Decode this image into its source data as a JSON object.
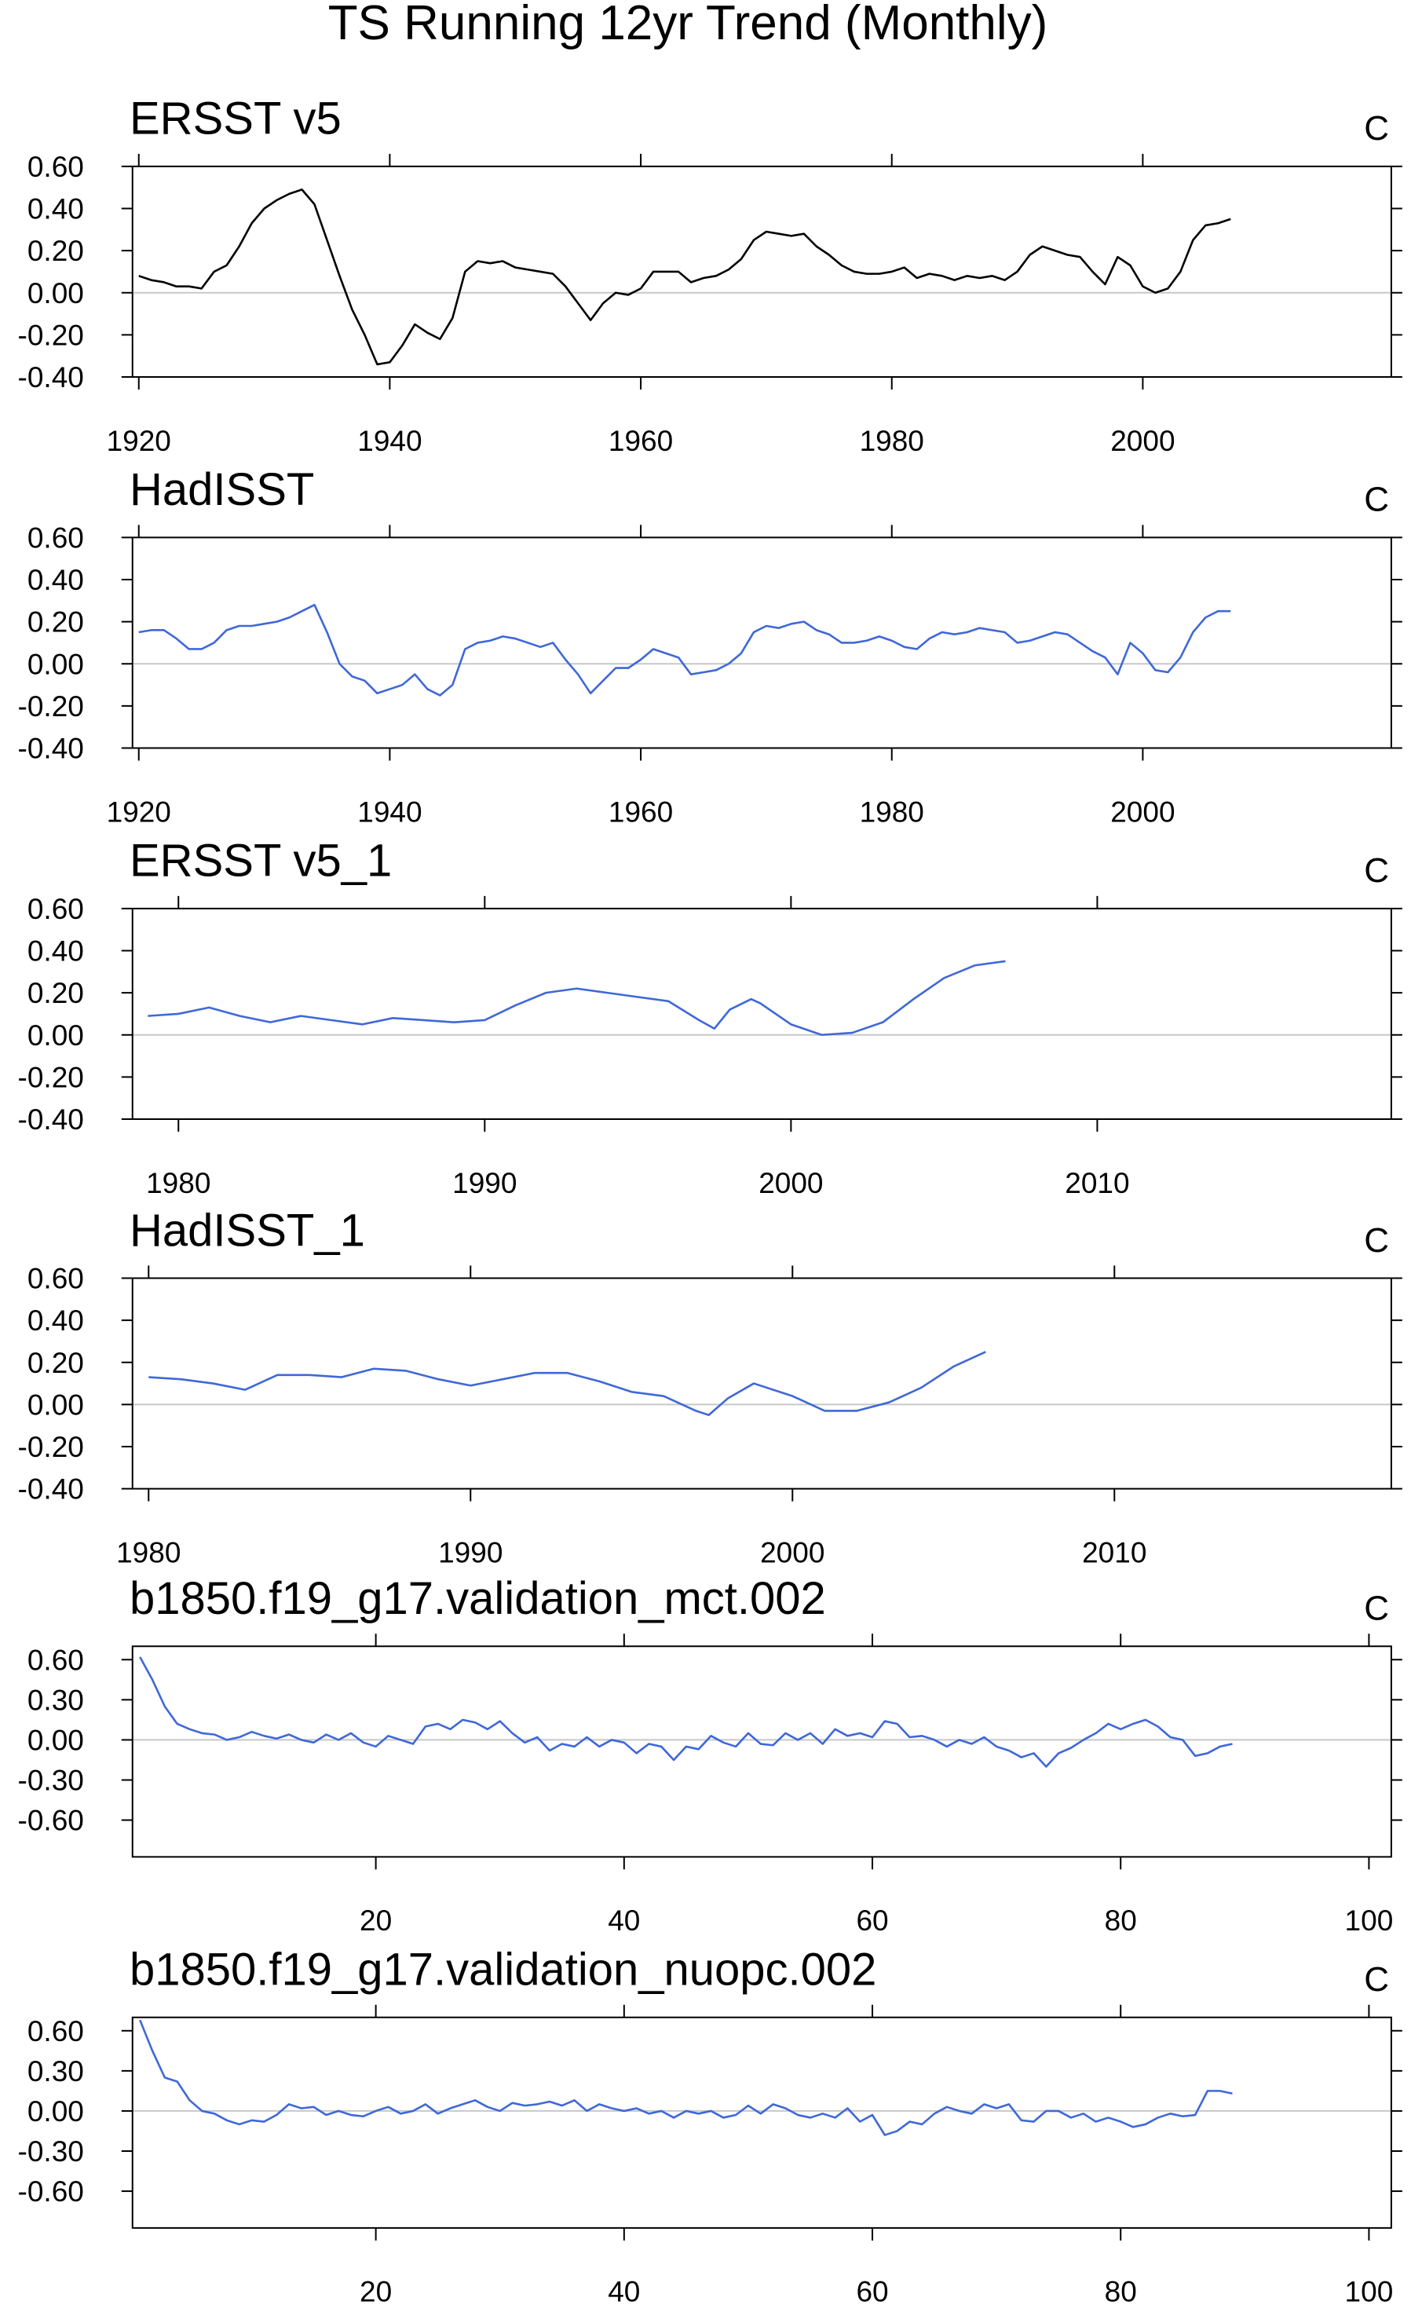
{
  "title": "TS Running 12yr Trend (Monthly)",
  "chart_data": [
    {
      "type": "line",
      "title": "ERSST v5",
      "units": "C",
      "color": "#000000",
      "zero_line": true,
      "xlim": [
        1919.5,
        2019.8
      ],
      "ylim": [
        -0.4,
        0.6
      ],
      "xticks": [
        1920,
        1940,
        1960,
        1980,
        2000
      ],
      "yticks": [
        {
          "value": 0.6,
          "label": "0.60"
        },
        {
          "value": 0.4,
          "label": "0.40"
        },
        {
          "value": 0.2,
          "label": "0.20"
        },
        {
          "value": 0,
          "label": "0.00"
        },
        {
          "value": -0.2,
          "label": "-0.20"
        },
        {
          "value": -0.4,
          "label": "-0.40"
        }
      ],
      "x": [
        1920,
        1921,
        1922,
        1923,
        1924,
        1925,
        1926,
        1927,
        1928,
        1929,
        1930,
        1931,
        1932,
        1933,
        1934,
        1935,
        1936,
        1937,
        1938,
        1939,
        1940,
        1941,
        1942,
        1943,
        1944,
        1945,
        1946,
        1947,
        1948,
        1949,
        1950,
        1951,
        1952,
        1953,
        1954,
        1955,
        1956,
        1957,
        1958,
        1959,
        1960,
        1961,
        1962,
        1963,
        1964,
        1965,
        1966,
        1967,
        1968,
        1969,
        1970,
        1971,
        1972,
        1973,
        1974,
        1975,
        1976,
        1977,
        1978,
        1979,
        1980,
        1981,
        1982,
        1983,
        1984,
        1985,
        1986,
        1987,
        1988,
        1989,
        1990,
        1991,
        1992,
        1993,
        1994,
        1995,
        1996,
        1997,
        1998,
        1999,
        2000,
        2001,
        2002,
        2003,
        2004,
        2005,
        2006,
        2007
      ],
      "values": [
        0.08,
        0.06,
        0.05,
        0.03,
        0.03,
        0.02,
        0.1,
        0.13,
        0.22,
        0.33,
        0.4,
        0.44,
        0.47,
        0.49,
        0.42,
        0.25,
        0.08,
        -0.08,
        -0.2,
        -0.34,
        -0.33,
        -0.25,
        -0.15,
        -0.19,
        -0.22,
        -0.12,
        0.1,
        0.15,
        0.14,
        0.15,
        0.12,
        0.11,
        0.1,
        0.09,
        0.03,
        -0.05,
        -0.13,
        -0.05,
        0,
        -0.01,
        0.02,
        0.1,
        0.1,
        0.1,
        0.05,
        0.07,
        0.08,
        0.11,
        0.16,
        0.25,
        0.29,
        0.28,
        0.27,
        0.28,
        0.22,
        0.18,
        0.13,
        0.1,
        0.09,
        0.09,
        0.1,
        0.12,
        0.07,
        0.09,
        0.08,
        0.06,
        0.08,
        0.07,
        0.08,
        0.06,
        0.1,
        0.18,
        0.22,
        0.2,
        0.18,
        0.17,
        0.1,
        0.04,
        0.17,
        0.13,
        0.03,
        0,
        0.02,
        0.1,
        0.25,
        0.32,
        0.33,
        0.35
      ]
    },
    {
      "type": "line",
      "title": "HadISST",
      "units": "C",
      "color": "#3f68d8",
      "zero_line": true,
      "xlim": [
        1919.5,
        2019.8
      ],
      "ylim": [
        -0.4,
        0.6
      ],
      "xticks": [
        1920,
        1940,
        1960,
        1980,
        2000
      ],
      "yticks": [
        {
          "value": 0.6,
          "label": "0.60"
        },
        {
          "value": 0.4,
          "label": "0.40"
        },
        {
          "value": 0.2,
          "label": "0.20"
        },
        {
          "value": 0,
          "label": "0.00"
        },
        {
          "value": -0.2,
          "label": "-0.20"
        },
        {
          "value": -0.4,
          "label": "-0.40"
        }
      ],
      "x": [
        1920,
        1921,
        1922,
        1923,
        1924,
        1925,
        1926,
        1927,
        1928,
        1929,
        1930,
        1931,
        1932,
        1933,
        1934,
        1935,
        1936,
        1937,
        1938,
        1939,
        1940,
        1941,
        1942,
        1943,
        1944,
        1945,
        1946,
        1947,
        1948,
        1949,
        1950,
        1951,
        1952,
        1953,
        1954,
        1955,
        1956,
        1957,
        1958,
        1959,
        1960,
        1961,
        1962,
        1963,
        1964,
        1965,
        1966,
        1967,
        1968,
        1969,
        1970,
        1971,
        1972,
        1973,
        1974,
        1975,
        1976,
        1977,
        1978,
        1979,
        1980,
        1981,
        1982,
        1983,
        1984,
        1985,
        1986,
        1987,
        1988,
        1989,
        1990,
        1991,
        1992,
        1993,
        1994,
        1995,
        1996,
        1997,
        1998,
        1999,
        2000,
        2001,
        2002,
        2003,
        2004,
        2005,
        2006,
        2007
      ],
      "values": [
        0.15,
        0.16,
        0.16,
        0.12,
        0.07,
        0.07,
        0.1,
        0.16,
        0.18,
        0.18,
        0.19,
        0.2,
        0.22,
        0.25,
        0.28,
        0.15,
        0,
        -0.06,
        -0.08,
        -0.14,
        -0.12,
        -0.1,
        -0.05,
        -0.12,
        -0.15,
        -0.1,
        0.07,
        0.1,
        0.11,
        0.13,
        0.12,
        0.1,
        0.08,
        0.1,
        0.02,
        -0.05,
        -0.14,
        -0.08,
        -0.02,
        -0.02,
        0.02,
        0.07,
        0.05,
        0.03,
        -0.05,
        -0.04,
        -0.03,
        0,
        0.05,
        0.15,
        0.18,
        0.17,
        0.19,
        0.2,
        0.16,
        0.14,
        0.1,
        0.1,
        0.11,
        0.13,
        0.11,
        0.08,
        0.07,
        0.12,
        0.15,
        0.14,
        0.15,
        0.17,
        0.16,
        0.15,
        0.1,
        0.11,
        0.13,
        0.15,
        0.14,
        0.1,
        0.06,
        0.03,
        -0.05,
        0.1,
        0.05,
        -0.03,
        -0.04,
        0.03,
        0.15,
        0.22,
        0.25,
        0.25
      ]
    },
    {
      "type": "line",
      "title": "ERSST v5_1",
      "units": "C",
      "color": "#3f68d8",
      "zero_line": true,
      "xlim": [
        1978.5,
        2019.6
      ],
      "ylim": [
        -0.4,
        0.6
      ],
      "xticks": [
        1980,
        1990,
        2000,
        2010
      ],
      "yticks": [
        {
          "value": 0.6,
          "label": "0.60"
        },
        {
          "value": 0.4,
          "label": "0.40"
        },
        {
          "value": 0.2,
          "label": "0.20"
        },
        {
          "value": 0,
          "label": "0.00"
        },
        {
          "value": -0.2,
          "label": "-0.20"
        },
        {
          "value": -0.4,
          "label": "-0.40"
        }
      ],
      "x": [
        1979,
        1980,
        1981,
        1982,
        1983,
        1984,
        1985,
        1986,
        1987,
        1988,
        1989,
        1990,
        1991,
        1992,
        1993,
        1994,
        1995,
        1996,
        1997,
        1997.5,
        1998,
        1998.7,
        1999,
        2000,
        2001,
        2002,
        2003,
        2004,
        2005,
        2006,
        2007
      ],
      "values": [
        0.09,
        0.1,
        0.13,
        0.09,
        0.06,
        0.09,
        0.07,
        0.05,
        0.08,
        0.07,
        0.06,
        0.07,
        0.14,
        0.2,
        0.22,
        0.2,
        0.18,
        0.16,
        0.07,
        0.03,
        0.12,
        0.17,
        0.15,
        0.05,
        0,
        0.01,
        0.06,
        0.17,
        0.27,
        0.33,
        0.35
      ]
    },
    {
      "type": "line",
      "title": "HadISST_1",
      "units": "C",
      "color": "#3f68d8",
      "zero_line": true,
      "xlim": [
        1979.5,
        2018.6
      ],
      "ylim": [
        -0.4,
        0.6
      ],
      "xticks": [
        1980,
        1990,
        2000,
        2010
      ],
      "yticks": [
        {
          "value": 0.6,
          "label": "0.60"
        },
        {
          "value": 0.4,
          "label": "0.40"
        },
        {
          "value": 0.2,
          "label": "0.20"
        },
        {
          "value": 0,
          "label": "0.00"
        },
        {
          "value": -0.2,
          "label": "-0.20"
        },
        {
          "value": -0.4,
          "label": "-0.40"
        }
      ],
      "x": [
        1980,
        1981,
        1982,
        1983,
        1984,
        1985,
        1986,
        1987,
        1988,
        1989,
        1990,
        1991,
        1992,
        1993,
        1994,
        1995,
        1996,
        1997,
        1997.4,
        1998,
        1998.8,
        2000,
        2001,
        2002,
        2003,
        2004,
        2005,
        2006
      ],
      "values": [
        0.13,
        0.12,
        0.1,
        0.07,
        0.14,
        0.14,
        0.13,
        0.17,
        0.16,
        0.12,
        0.09,
        0.12,
        0.15,
        0.15,
        0.11,
        0.06,
        0.04,
        -0.03,
        -0.05,
        0.03,
        0.1,
        0.04,
        -0.03,
        -0.03,
        0.01,
        0.08,
        0.18,
        0.25
      ]
    },
    {
      "type": "line",
      "title": "b1850.f19_g17.validation_mct.002",
      "units": "C",
      "color": "#3f68d8",
      "zero_line": true,
      "xlim": [
        0.4,
        101.8
      ],
      "ylim": [
        -0.875,
        0.7
      ],
      "xticks": [
        20,
        40,
        60,
        80,
        100
      ],
      "yticks": [
        {
          "value": 0.6,
          "label": "0.60"
        },
        {
          "value": 0.3,
          "label": "0.30"
        },
        {
          "value": 0,
          "label": "0.00"
        },
        {
          "value": -0.3,
          "label": "-0.30"
        },
        {
          "value": -0.6,
          "label": "-0.60"
        }
      ],
      "x": [
        1,
        2,
        3,
        4,
        5,
        6,
        7,
        8,
        9,
        10,
        11,
        12,
        13,
        14,
        15,
        16,
        17,
        18,
        19,
        20,
        21,
        22,
        23,
        24,
        25,
        26,
        27,
        28,
        29,
        30,
        31,
        32,
        33,
        34,
        35,
        36,
        37,
        38,
        39,
        40,
        41,
        42,
        43,
        44,
        45,
        46,
        47,
        48,
        49,
        50,
        51,
        52,
        53,
        54,
        55,
        56,
        57,
        58,
        59,
        60,
        61,
        62,
        63,
        64,
        65,
        66,
        67,
        68,
        69,
        70,
        71,
        72,
        73,
        74,
        75,
        76,
        77,
        78,
        79,
        80,
        81,
        82,
        83,
        84,
        85,
        86,
        87,
        88,
        89
      ],
      "values": [
        0.62,
        0.45,
        0.25,
        0.12,
        0.08,
        0.05,
        0.04,
        0,
        0.02,
        0.06,
        0.03,
        0.01,
        0.04,
        0,
        -0.02,
        0.04,
        0,
        0.05,
        -0.02,
        -0.05,
        0.03,
        0,
        -0.03,
        0.1,
        0.12,
        0.08,
        0.15,
        0.13,
        0.08,
        0.14,
        0.05,
        -0.02,
        0.02,
        -0.08,
        -0.03,
        -0.05,
        0.02,
        -0.05,
        0,
        -0.02,
        -0.1,
        -0.03,
        -0.05,
        -0.15,
        -0.05,
        -0.07,
        0.03,
        -0.02,
        -0.05,
        0.05,
        -0.03,
        -0.04,
        0.05,
        0,
        0.05,
        -0.03,
        0.08,
        0.03,
        0.05,
        0.02,
        0.14,
        0.12,
        0.02,
        0.03,
        0,
        -0.05,
        0,
        -0.03,
        0.02,
        -0.05,
        -0.08,
        -0.13,
        -0.1,
        -0.2,
        -0.1,
        -0.06,
        0,
        0.05,
        0.12,
        0.08,
        0.12,
        0.15,
        0.1,
        0.02,
        0,
        -0.12,
        -0.1,
        -0.05,
        -0.03
      ]
    },
    {
      "type": "line",
      "title": "b1850.f19_g17.validation_nuopc.002",
      "units": "C",
      "color": "#3f68d8",
      "zero_line": true,
      "xlim": [
        0.4,
        101.8
      ],
      "ylim": [
        -0.875,
        0.7
      ],
      "xticks": [
        20,
        40,
        60,
        80,
        100
      ],
      "yticks": [
        {
          "value": 0.6,
          "label": "0.60"
        },
        {
          "value": 0.3,
          "label": "0.30"
        },
        {
          "value": 0,
          "label": "0.00"
        },
        {
          "value": -0.3,
          "label": "-0.30"
        },
        {
          "value": -0.6,
          "label": "-0.60"
        }
      ],
      "x": [
        1,
        2,
        3,
        4,
        5,
        6,
        7,
        8,
        9,
        10,
        11,
        12,
        13,
        14,
        15,
        16,
        17,
        18,
        19,
        20,
        21,
        22,
        23,
        24,
        25,
        26,
        27,
        28,
        29,
        30,
        31,
        32,
        33,
        34,
        35,
        36,
        37,
        38,
        39,
        40,
        41,
        42,
        43,
        44,
        45,
        46,
        47,
        48,
        49,
        50,
        51,
        52,
        53,
        54,
        55,
        56,
        57,
        58,
        59,
        60,
        61,
        62,
        63,
        64,
        65,
        66,
        67,
        68,
        69,
        70,
        71,
        72,
        73,
        74,
        75,
        76,
        77,
        78,
        79,
        80,
        81,
        82,
        83,
        84,
        85,
        86,
        87,
        88,
        89
      ],
      "values": [
        0.68,
        0.45,
        0.25,
        0.22,
        0.08,
        0,
        -0.02,
        -0.07,
        -0.1,
        -0.07,
        -0.08,
        -0.03,
        0.05,
        0.02,
        0.03,
        -0.03,
        0,
        -0.03,
        -0.04,
        0,
        0.03,
        -0.02,
        0,
        0.05,
        -0.02,
        0.02,
        0.05,
        0.08,
        0.03,
        0,
        0.06,
        0.04,
        0.05,
        0.07,
        0.04,
        0.08,
        0,
        0.05,
        0.02,
        0,
        0.02,
        -0.02,
        0,
        -0.05,
        0,
        -0.02,
        0,
        -0.05,
        -0.03,
        0.04,
        -0.02,
        0.05,
        0.02,
        -0.03,
        -0.05,
        -0.02,
        -0.05,
        0.02,
        -0.08,
        -0.03,
        -0.18,
        -0.15,
        -0.08,
        -0.1,
        -0.02,
        0.03,
        0,
        -0.02,
        0.05,
        0.02,
        0.05,
        -0.07,
        -0.08,
        0,
        0,
        -0.05,
        -0.02,
        -0.08,
        -0.05,
        -0.08,
        -0.12,
        -0.1,
        -0.05,
        -0.02,
        -0.04,
        -0.03,
        0.15,
        0.15,
        0.13
      ]
    }
  ]
}
